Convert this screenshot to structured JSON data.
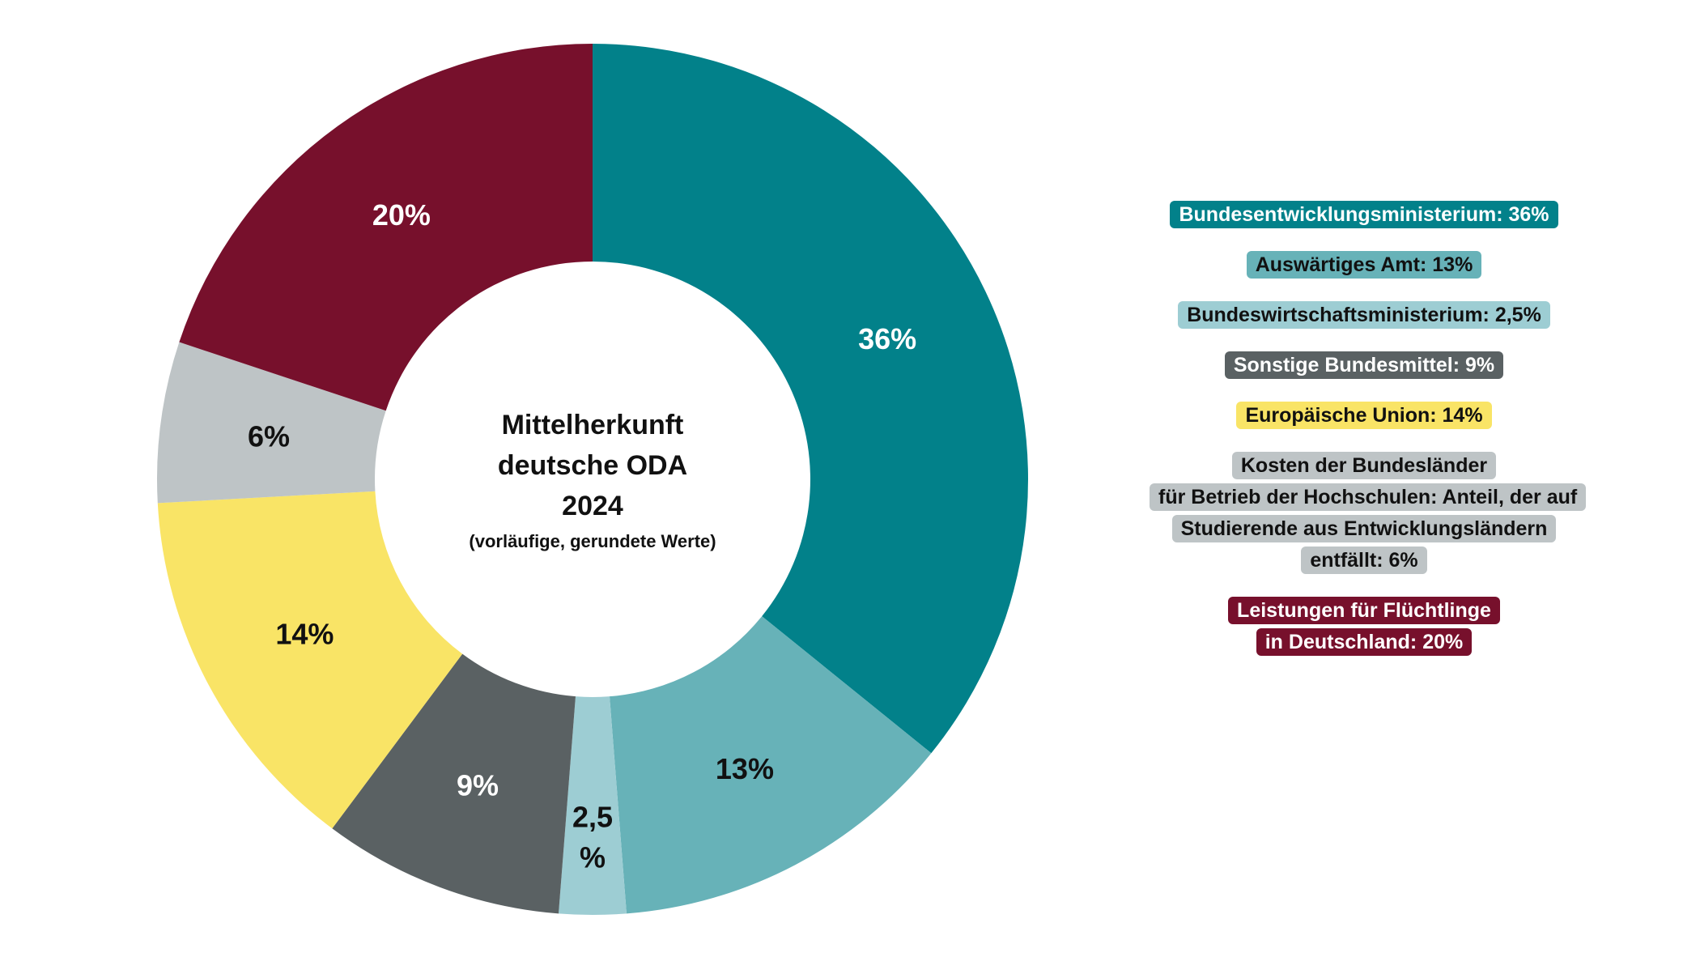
{
  "chart_data": {
    "type": "pie",
    "title": "Mittelherkunft deutsche ODA 2024",
    "title_lines": [
      "Mittelherkunft",
      "deutsche ODA",
      "2024"
    ],
    "subtitle": "(vorläufige, gerundete Werte)",
    "slices": [
      {
        "name": "Bundesentwicklungsministerium",
        "value": 36,
        "label": "36%",
        "label_lines": [
          "36%"
        ],
        "legend_lines": [
          "Bundesentwicklungsministerium: 36%"
        ],
        "color": "#02818a",
        "label_color": "#ffffff",
        "legend_text_color": "#ffffff"
      },
      {
        "name": "Auswärtiges Amt",
        "value": 13,
        "label": "13%",
        "label_lines": [
          "13%"
        ],
        "legend_lines": [
          "Auswärtiges Amt: 13%"
        ],
        "color": "#67b2b8",
        "label_color": "#111111",
        "legend_text_color": "#111111"
      },
      {
        "name": "Bundeswirtschaftsministerium",
        "value": 2.5,
        "label": "2,5%",
        "label_lines": [
          "2,5",
          "%"
        ],
        "legend_lines": [
          "Bundeswirtschaftsministerium: 2,5%"
        ],
        "color": "#9dcdd3",
        "label_color": "#111111",
        "legend_text_color": "#111111"
      },
      {
        "name": "Sonstige Bundesmittel",
        "value": 9,
        "label": "9%",
        "label_lines": [
          "9%"
        ],
        "legend_lines": [
          "Sonstige Bundesmittel: 9%"
        ],
        "color": "#5a6163",
        "label_color": "#ffffff",
        "legend_text_color": "#ffffff"
      },
      {
        "name": "Europäische Union",
        "value": 14,
        "label": "14%",
        "label_lines": [
          "14%"
        ],
        "legend_lines": [
          "Europäische Union: 14%"
        ],
        "color": "#f9e466",
        "label_color": "#111111",
        "legend_text_color": "#111111"
      },
      {
        "name": "Kosten der Bundesländer für Betrieb der Hochschulen: Anteil, der auf Studierende aus Entwicklungsländern entfällt",
        "value": 6,
        "label": "6%",
        "label_lines": [
          "6%"
        ],
        "legend_lines": [
          "Kosten der Bundesländer",
          "für Betrieb der Hochschulen: Anteil, der auf",
          "Studierende aus Entwicklungsländern",
          "entfällt: 6%"
        ],
        "color": "#bec4c6",
        "label_color": "#111111",
        "legend_text_color": "#111111"
      },
      {
        "name": "Leistungen für Flüchtlinge in Deutschland",
        "value": 20,
        "label": "20%",
        "label_lines": [
          "20%"
        ],
        "legend_lines": [
          "Leistungen für Flüchtlinge",
          "in Deutschland: 20%"
        ],
        "color": "#77102c",
        "label_color": "#ffffff",
        "legend_text_color": "#ffffff"
      }
    ]
  }
}
